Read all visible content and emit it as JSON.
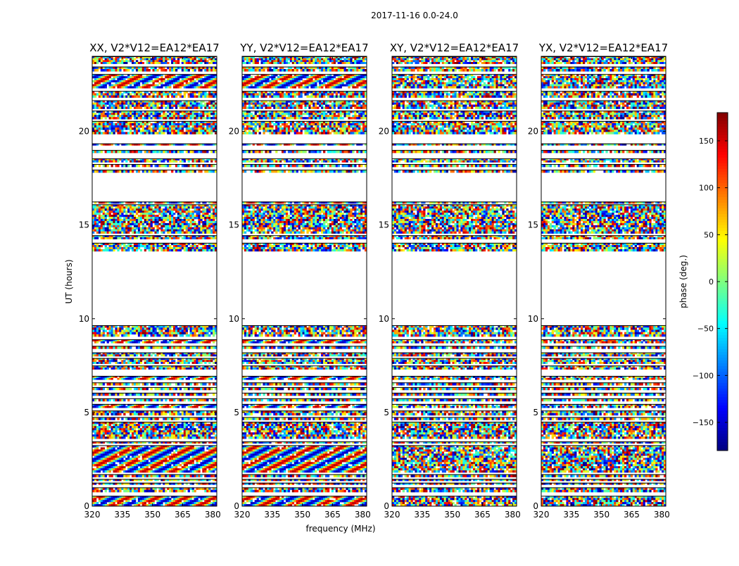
{
  "figure": {
    "suptitle": "2017-11-16 0.0-24.0",
    "xlabel": "frequency (MHz)",
    "ylabel": "UT (hours)",
    "colorbar_label": "phase (deg.)"
  },
  "chart_data": {
    "type": "heatmap",
    "title": "2017-11-16 0.0-24.0",
    "xlabel": "frequency (MHz)",
    "ylabel": "UT (hours)",
    "xlim": [
      320,
      382
    ],
    "ylim": [
      0,
      24
    ],
    "xticks": [
      320,
      335,
      350,
      365,
      380
    ],
    "yticks": [
      0,
      5,
      10,
      15,
      20
    ],
    "colormap": "jet",
    "colorbar": {
      "label": "phase (deg.)",
      "range": [
        -180,
        180
      ],
      "ticks": [
        150,
        100,
        50,
        0,
        -50,
        -100,
        -150
      ],
      "tick_labels": [
        "150",
        "100",
        "50",
        "0",
        "−50",
        "−100",
        "−150"
      ]
    },
    "panels": [
      {
        "title": "XX, V2*V12=EA12*EA17",
        "polarization": "XX"
      },
      {
        "title": "YY, V2*V12=EA12*EA17",
        "polarization": "YY"
      },
      {
        "title": "XY, V2*V12=EA12*EA17",
        "polarization": "XY"
      },
      {
        "title": "YX, V2*V12=EA12*EA17",
        "polarization": "YX"
      }
    ],
    "data_bands_ut_hours": [
      [
        0.0,
        0.55
      ],
      [
        0.75,
        1.0
      ],
      [
        1.15,
        1.25
      ],
      [
        1.35,
        1.45
      ],
      [
        1.55,
        1.7
      ],
      [
        1.8,
        3.25
      ],
      [
        3.35,
        3.45
      ],
      [
        3.6,
        4.5
      ],
      [
        4.6,
        4.75
      ],
      [
        4.85,
        5.1
      ],
      [
        5.25,
        5.45
      ],
      [
        5.6,
        5.75
      ],
      [
        5.9,
        6.05
      ],
      [
        6.2,
        6.35
      ],
      [
        6.45,
        6.6
      ],
      [
        6.75,
        6.95
      ],
      [
        7.3,
        7.5
      ],
      [
        7.6,
        7.9
      ],
      [
        8.0,
        8.2
      ],
      [
        8.4,
        8.55
      ],
      [
        8.7,
        8.9
      ],
      [
        9.05,
        9.65
      ],
      [
        13.6,
        14.05
      ],
      [
        14.25,
        14.45
      ],
      [
        14.55,
        16.1
      ],
      [
        16.15,
        16.25
      ],
      [
        17.8,
        17.95
      ],
      [
        18.1,
        18.25
      ],
      [
        18.35,
        18.55
      ],
      [
        18.85,
        19.0
      ],
      [
        19.25,
        19.35
      ],
      [
        19.85,
        20.55
      ],
      [
        20.65,
        21.1
      ],
      [
        21.2,
        21.65
      ],
      [
        21.8,
        22.15
      ],
      [
        22.3,
        23.05
      ],
      [
        23.2,
        23.45
      ],
      [
        23.6,
        24.0
      ]
    ],
    "empty_ut_hours": [
      9.7,
      13.55
    ]
  }
}
